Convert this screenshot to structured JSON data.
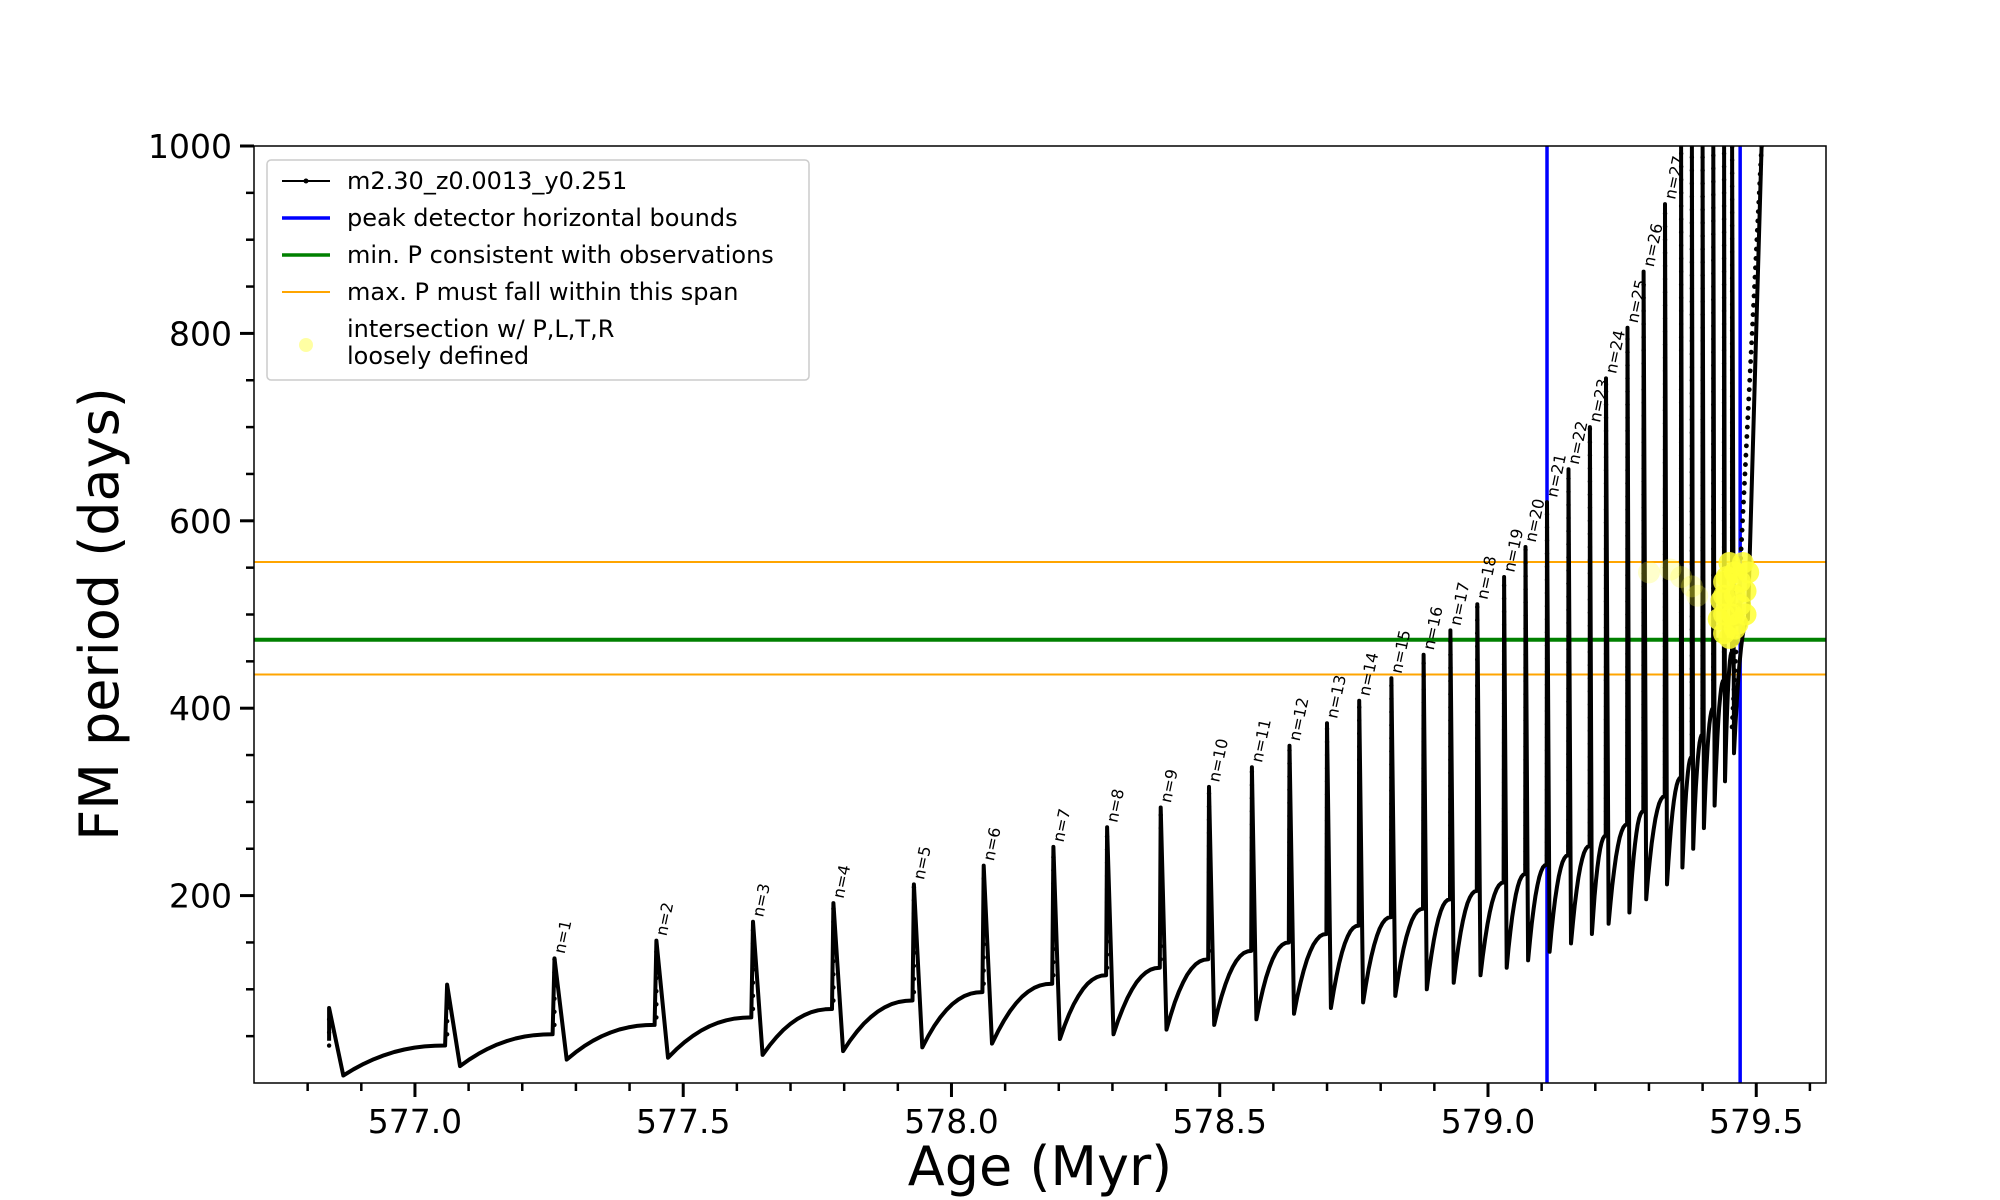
{
  "chart_data": {
    "type": "line",
    "xlabel": "Age (Myr)",
    "ylabel": "FM period (days)",
    "xlim": [
      576.7,
      579.63
    ],
    "ylim": [
      0,
      1000
    ],
    "x_ticks": [
      577.0,
      577.5,
      578.0,
      578.5,
      579.0,
      579.5
    ],
    "x_tick_labels": [
      "577.0",
      "577.5",
      "578.0",
      "578.5",
      "579.0",
      "579.5"
    ],
    "y_ticks": [
      200,
      400,
      600,
      800,
      1000
    ],
    "y_tick_labels": [
      "200",
      "400",
      "600",
      "800",
      "1000"
    ],
    "legend_position": "top-left",
    "legend": [
      {
        "label": "m2.30_z0.0013_y0.251",
        "color": "#000000",
        "style": "line-marker"
      },
      {
        "label": "peak detector horizontal bounds",
        "color": "#0000ff",
        "style": "line"
      },
      {
        "label": "min. P consistent with observations",
        "color": "#008000",
        "style": "line"
      },
      {
        "label": "max. P must fall within this span",
        "color": "#ffa500",
        "style": "line"
      },
      {
        "label": "intersection w/ P,L,T,R",
        "label2": "loosely defined",
        "color": "#ffff66",
        "style": "marker"
      }
    ],
    "vertical_lines": [
      579.11,
      579.47
    ],
    "min_period_line": 473,
    "max_period_span": [
      436,
      556
    ],
    "pulses": [
      {
        "label": "n=1",
        "age": 577.26,
        "peak": 133,
        "min": 25,
        "base": 62
      },
      {
        "label": "n=2",
        "age": 577.45,
        "peak": 152,
        "min": 27,
        "base": 70
      },
      {
        "label": "n=3",
        "age": 577.63,
        "peak": 172,
        "min": 30,
        "base": 79
      },
      {
        "label": "n=4",
        "age": 577.78,
        "peak": 192,
        "min": 34,
        "base": 88
      },
      {
        "label": "n=5",
        "age": 577.93,
        "peak": 212,
        "min": 38,
        "base": 97
      },
      {
        "label": "n=6",
        "age": 578.06,
        "peak": 232,
        "min": 42,
        "base": 106
      },
      {
        "label": "n=7",
        "age": 578.19,
        "peak": 252,
        "min": 47,
        "base": 115
      },
      {
        "label": "n=8",
        "age": 578.29,
        "peak": 273,
        "min": 52,
        "base": 123
      },
      {
        "label": "n=9",
        "age": 578.39,
        "peak": 294,
        "min": 57,
        "base": 132
      },
      {
        "label": "n=10",
        "age": 578.48,
        "peak": 316,
        "min": 62,
        "base": 141
      },
      {
        "label": "n=11",
        "age": 578.56,
        "peak": 337,
        "min": 68,
        "base": 150
      },
      {
        "label": "n=12",
        "age": 578.63,
        "peak": 360,
        "min": 74,
        "base": 159
      },
      {
        "label": "n=13",
        "age": 578.7,
        "peak": 384,
        "min": 80,
        "base": 168
      },
      {
        "label": "n=14",
        "age": 578.76,
        "peak": 408,
        "min": 86,
        "base": 177
      },
      {
        "label": "n=15",
        "age": 578.82,
        "peak": 432,
        "min": 93,
        "base": 186
      },
      {
        "label": "n=16",
        "age": 578.88,
        "peak": 457,
        "min": 100,
        "base": 196
      },
      {
        "label": "n=17",
        "age": 578.93,
        "peak": 483,
        "min": 107,
        "base": 205
      },
      {
        "label": "n=18",
        "age": 578.98,
        "peak": 511,
        "min": 115,
        "base": 214
      },
      {
        "label": "n=19",
        "age": 579.03,
        "peak": 540,
        "min": 123,
        "base": 223
      },
      {
        "label": "n=20",
        "age": 579.07,
        "peak": 572,
        "min": 131,
        "base": 233
      },
      {
        "label": "n=21",
        "age": 579.11,
        "peak": 620,
        "min": 140,
        "base": 243
      },
      {
        "label": "n=22",
        "age": 579.15,
        "peak": 655,
        "min": 149,
        "base": 253
      },
      {
        "label": "n=23",
        "age": 579.19,
        "peak": 700,
        "min": 159,
        "base": 264
      },
      {
        "label": "n=24",
        "age": 579.22,
        "peak": 752,
        "min": 170,
        "base": 276
      },
      {
        "label": "n=25",
        "age": 579.26,
        "peak": 806,
        "min": 182,
        "base": 290
      },
      {
        "label": "n=26",
        "age": 579.29,
        "peak": 866,
        "min": 196,
        "base": 306
      },
      {
        "label": "n=27",
        "age": 579.33,
        "peak": 938,
        "min": 212,
        "base": 326
      },
      {
        "label": "",
        "age": 579.36,
        "peak": 1000,
        "min": 230,
        "base": 348
      },
      {
        "label": "",
        "age": 579.38,
        "peak": 1000,
        "min": 250,
        "base": 372
      },
      {
        "label": "",
        "age": 579.4,
        "peak": 1000,
        "min": 272,
        "base": 400
      },
      {
        "label": "",
        "age": 579.42,
        "peak": 1000,
        "min": 296,
        "base": 430
      },
      {
        "label": "",
        "age": 579.44,
        "peak": 1000,
        "min": 322,
        "base": 460
      },
      {
        "label": "",
        "age": 579.455,
        "peak": 1000,
        "min": 352,
        "base": 495
      }
    ],
    "pre_pulses": [
      {
        "age": 576.84,
        "peak": 80,
        "min": 8,
        "base": 40
      },
      {
        "age": 577.06,
        "peak": 105,
        "min": 18,
        "base": 52
      }
    ],
    "track_start": {
      "age": 576.84,
      "period": 45
    },
    "track_end": {
      "age": 579.51,
      "period": 1000
    },
    "intersections": [
      [
        579.44,
        480
      ],
      [
        579.44,
        500
      ],
      [
        579.44,
        520
      ],
      [
        579.445,
        540
      ],
      [
        579.45,
        555
      ],
      [
        579.455,
        500
      ],
      [
        579.46,
        520
      ],
      [
        579.46,
        545
      ],
      [
        579.465,
        490
      ],
      [
        579.47,
        510
      ],
      [
        579.47,
        535
      ],
      [
        579.475,
        555
      ],
      [
        579.48,
        500
      ],
      [
        579.48,
        525
      ],
      [
        579.485,
        545
      ],
      [
        579.43,
        495
      ],
      [
        579.435,
        515
      ],
      [
        579.44,
        535
      ],
      [
        579.45,
        475
      ],
      [
        579.46,
        485
      ],
      [
        579.38,
        530
      ],
      [
        579.39,
        520
      ],
      [
        579.36,
        540
      ],
      [
        579.34,
        548
      ],
      [
        579.3,
        545
      ]
    ]
  }
}
